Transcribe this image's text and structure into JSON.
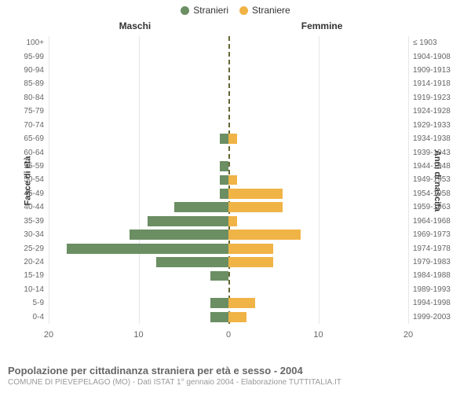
{
  "legend": {
    "left": {
      "label": "Stranieri",
      "color": "#6b8e63"
    },
    "right": {
      "label": "Straniere",
      "color": "#f0b346"
    }
  },
  "chart": {
    "type": "population-pyramid",
    "left_title": "Maschi",
    "right_title": "Femmine",
    "y_left_axis_title": "Fasce di età",
    "y_right_axis_title": "Anni di nascita",
    "x_max": 20,
    "x_ticks": [
      20,
      10,
      0,
      10,
      20
    ],
    "grid_color": "#e6e6e6",
    "center_line_color": "#666633",
    "background_color": "#ffffff",
    "label_color": "#666666",
    "title_fontsize": 12,
    "label_fontsize": 10,
    "rows": [
      {
        "age": "100+",
        "birth": "≤ 1903",
        "male": 0,
        "female": 0
      },
      {
        "age": "95-99",
        "birth": "1904-1908",
        "male": 0,
        "female": 0
      },
      {
        "age": "90-94",
        "birth": "1909-1913",
        "male": 0,
        "female": 0
      },
      {
        "age": "85-89",
        "birth": "1914-1918",
        "male": 0,
        "female": 0
      },
      {
        "age": "80-84",
        "birth": "1919-1923",
        "male": 0,
        "female": 0
      },
      {
        "age": "75-79",
        "birth": "1924-1928",
        "male": 0,
        "female": 0
      },
      {
        "age": "70-74",
        "birth": "1929-1933",
        "male": 0,
        "female": 0
      },
      {
        "age": "65-69",
        "birth": "1934-1938",
        "male": 1,
        "female": 1
      },
      {
        "age": "60-64",
        "birth": "1939-1943",
        "male": 0,
        "female": 0
      },
      {
        "age": "55-59",
        "birth": "1944-1948",
        "male": 1,
        "female": 0
      },
      {
        "age": "50-54",
        "birth": "1949-1953",
        "male": 1,
        "female": 1
      },
      {
        "age": "45-49",
        "birth": "1954-1958",
        "male": 1,
        "female": 6
      },
      {
        "age": "40-44",
        "birth": "1959-1963",
        "male": 6,
        "female": 6
      },
      {
        "age": "35-39",
        "birth": "1964-1968",
        "male": 9,
        "female": 1
      },
      {
        "age": "30-34",
        "birth": "1969-1973",
        "male": 11,
        "female": 8
      },
      {
        "age": "25-29",
        "birth": "1974-1978",
        "male": 18,
        "female": 5
      },
      {
        "age": "20-24",
        "birth": "1979-1983",
        "male": 8,
        "female": 5
      },
      {
        "age": "15-19",
        "birth": "1984-1988",
        "male": 2,
        "female": 0
      },
      {
        "age": "10-14",
        "birth": "1989-1993",
        "male": 0,
        "female": 0
      },
      {
        "age": "5-9",
        "birth": "1994-1998",
        "male": 2,
        "female": 3
      },
      {
        "age": "0-4",
        "birth": "1999-2003",
        "male": 2,
        "female": 2
      }
    ]
  },
  "caption": {
    "title": "Popolazione per cittadinanza straniera per età e sesso - 2004",
    "sub": "COMUNE DI PIEVEPELAGO (MO) - Dati ISTAT 1° gennaio 2004 - Elaborazione TUTTITALIA.IT"
  }
}
